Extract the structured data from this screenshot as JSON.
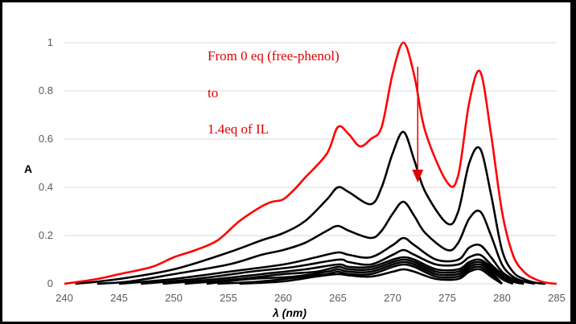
{
  "chart_data": {
    "type": "line",
    "title": "",
    "xlabel": "λ (nm)",
    "ylabel": "A",
    "xlim": [
      240,
      285
    ],
    "ylim": [
      0,
      1.0
    ],
    "xticks": [
      "240",
      "245",
      "250",
      "255",
      "260",
      "265",
      "270",
      "275",
      "280",
      "285"
    ],
    "yticks": [
      "0",
      "0.2",
      "0.4",
      "0.6",
      "0.8",
      "1"
    ],
    "grid": "horizontal",
    "legend": "none",
    "annotation": {
      "lines": [
        "From 0 eq (free-phenol)",
        "to",
        "1.4eq of IL"
      ],
      "arrow": {
        "x": 272.3,
        "from_y": 0.9,
        "to_y": 0.42,
        "meaning": "decreasing absorbance"
      }
    },
    "colors": {
      "first_series": "#ff0000",
      "other_series": "#000000",
      "annotation": "#e00000"
    },
    "series": [
      {
        "x": [
          240,
          243,
          245,
          248,
          250,
          252,
          254,
          256,
          258,
          259,
          260,
          261,
          262,
          264,
          265,
          266,
          267,
          268,
          269,
          270,
          271,
          272,
          273,
          275,
          276,
          277,
          278,
          279,
          280,
          281,
          282,
          283,
          284,
          285
        ],
        "values": [
          0.0,
          0.02,
          0.04,
          0.07,
          0.11,
          0.14,
          0.18,
          0.26,
          0.32,
          0.34,
          0.35,
          0.39,
          0.44,
          0.54,
          0.65,
          0.62,
          0.57,
          0.6,
          0.65,
          0.87,
          1.0,
          0.86,
          0.63,
          0.42,
          0.45,
          0.75,
          0.88,
          0.62,
          0.3,
          0.12,
          0.05,
          0.02,
          0.005,
          0.0
        ]
      },
      {
        "x": [
          241,
          245,
          250,
          255,
          258,
          260,
          262,
          264,
          265,
          266,
          268,
          269,
          270,
          271,
          272,
          273,
          275,
          276,
          277,
          278,
          279,
          280,
          281,
          282,
          283,
          284
        ],
        "values": [
          0.0,
          0.02,
          0.06,
          0.13,
          0.18,
          0.21,
          0.26,
          0.35,
          0.4,
          0.38,
          0.33,
          0.4,
          0.54,
          0.63,
          0.51,
          0.38,
          0.25,
          0.3,
          0.5,
          0.56,
          0.37,
          0.14,
          0.05,
          0.02,
          0.005,
          0.0
        ]
      },
      {
        "x": [
          243,
          246,
          250,
          255,
          258,
          260,
          262,
          264,
          265,
          266,
          268,
          269,
          270,
          271,
          272,
          273,
          275,
          276,
          277,
          278,
          279,
          280,
          281,
          282,
          283
        ],
        "values": [
          0.0,
          0.01,
          0.04,
          0.08,
          0.12,
          0.14,
          0.17,
          0.22,
          0.24,
          0.22,
          0.19,
          0.22,
          0.29,
          0.34,
          0.28,
          0.21,
          0.14,
          0.17,
          0.27,
          0.3,
          0.2,
          0.08,
          0.03,
          0.01,
          0.0
        ]
      },
      {
        "x": [
          245,
          250,
          255,
          260,
          263,
          265,
          266,
          268,
          270,
          271,
          272,
          274,
          276,
          277,
          278,
          279,
          280,
          281,
          282
        ],
        "values": [
          0.0,
          0.02,
          0.05,
          0.08,
          0.11,
          0.13,
          0.12,
          0.11,
          0.16,
          0.19,
          0.16,
          0.1,
          0.1,
          0.15,
          0.16,
          0.11,
          0.05,
          0.02,
          0.0
        ]
      },
      {
        "x": [
          247,
          252,
          257,
          261,
          265,
          266,
          268,
          270,
          271,
          272,
          274,
          276,
          277,
          278,
          279,
          280,
          281,
          282
        ],
        "values": [
          0.0,
          0.02,
          0.05,
          0.07,
          0.1,
          0.09,
          0.08,
          0.12,
          0.14,
          0.12,
          0.08,
          0.08,
          0.11,
          0.12,
          0.08,
          0.04,
          0.01,
          0.0
        ]
      },
      {
        "x": [
          249,
          254,
          258,
          262,
          265,
          266,
          268,
          270,
          271,
          272,
          274,
          276,
          277,
          278,
          279,
          280,
          281
        ],
        "values": [
          0.0,
          0.02,
          0.04,
          0.06,
          0.08,
          0.07,
          0.07,
          0.1,
          0.11,
          0.1,
          0.06,
          0.06,
          0.09,
          0.1,
          0.07,
          0.03,
          0.0
        ]
      },
      {
        "x": [
          251,
          256,
          260,
          263,
          265,
          266,
          268,
          270,
          271,
          272,
          274,
          276,
          277,
          278,
          279,
          280,
          281
        ],
        "values": [
          0.0,
          0.02,
          0.04,
          0.05,
          0.07,
          0.06,
          0.06,
          0.09,
          0.1,
          0.09,
          0.05,
          0.05,
          0.08,
          0.09,
          0.06,
          0.02,
          0.0
        ]
      },
      {
        "x": [
          253,
          257,
          261,
          264,
          265,
          266,
          268,
          270,
          271,
          272,
          274,
          276,
          277,
          278,
          279,
          280
        ],
        "values": [
          0.0,
          0.02,
          0.03,
          0.05,
          0.06,
          0.05,
          0.05,
          0.08,
          0.09,
          0.08,
          0.04,
          0.04,
          0.07,
          0.08,
          0.05,
          0.0
        ]
      },
      {
        "x": [
          254,
          258,
          262,
          264,
          265,
          266,
          268,
          270,
          271,
          272,
          274,
          276,
          277,
          278,
          279,
          280
        ],
        "values": [
          0.0,
          0.01,
          0.03,
          0.04,
          0.05,
          0.04,
          0.04,
          0.07,
          0.08,
          0.07,
          0.03,
          0.03,
          0.06,
          0.07,
          0.04,
          0.0
        ]
      },
      {
        "x": [
          256,
          260,
          263,
          265,
          266,
          268,
          270,
          271,
          272,
          274,
          276,
          277,
          278,
          279,
          280
        ],
        "values": [
          0.0,
          0.01,
          0.03,
          0.04,
          0.035,
          0.03,
          0.05,
          0.06,
          0.05,
          0.02,
          0.02,
          0.05,
          0.06,
          0.03,
          0.0
        ]
      }
    ]
  }
}
